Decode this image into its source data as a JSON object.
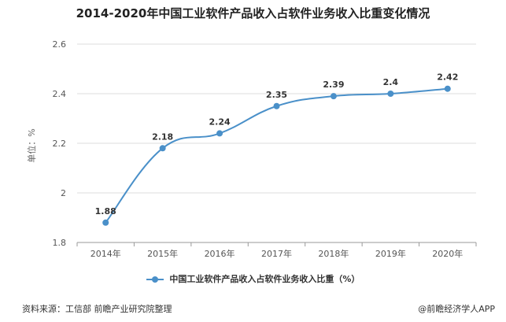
{
  "chart_data": {
    "type": "line",
    "title": "2014-2020年中国工业软件产品收入占软件业务收入比重变化情况",
    "ylabel": "单位：%",
    "categories": [
      "2014年",
      "2015年",
      "2016年",
      "2017年",
      "2018年",
      "2019年",
      "2020年"
    ],
    "series": [
      {
        "name": "中国工业软件产品收入占软件业务收入比重（%）",
        "values": [
          1.88,
          2.18,
          2.24,
          2.35,
          2.39,
          2.4,
          2.42
        ],
        "labels": [
          "1.88",
          "2.18",
          "2.24",
          "2.35",
          "2.39",
          "2.4",
          "2.42"
        ]
      }
    ],
    "ylim": [
      1.8,
      2.6
    ],
    "yticks": [
      "1.8",
      "2",
      "2.2",
      "2.4",
      "2.6"
    ],
    "grid": true,
    "legend_position": "bottom",
    "line_color": "#4a90c9"
  },
  "footer": {
    "source": "资料来源：工信部 前瞻产业研究院整理",
    "credit": "@前瞻经济学人APP"
  }
}
